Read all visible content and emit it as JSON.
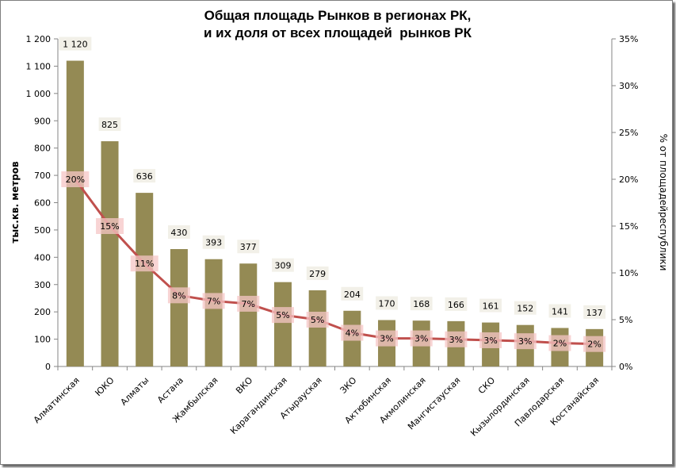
{
  "chart_data": {
    "type": "bar",
    "title_lines": [
      "Общая площадь Рынков в регионах РК,",
      "и их доля от всех площадей  рынков РК"
    ],
    "categories": [
      "Алматинская",
      "ЮКО",
      "Алматы",
      "Астана",
      "Жамбылская",
      "ВКО",
      "Карагандинская",
      "Атырауская",
      "ЗКО",
      "Актюбинская",
      "Акмолинская",
      "Мангистауская",
      "СКО",
      "Кызылординская",
      "Павлодарская",
      "Костанайская"
    ],
    "series": [
      {
        "type": "bar",
        "axis": "left",
        "values": [
          1120,
          825,
          636,
          430,
          393,
          377,
          309,
          279,
          204,
          170,
          168,
          166,
          161,
          152,
          141,
          137
        ],
        "labels": [
          "1 120",
          "825",
          "636",
          "430",
          "393",
          "377",
          "309",
          "279",
          "204",
          "170",
          "168",
          "166",
          "161",
          "152",
          "141",
          "137"
        ],
        "color": "#948a54"
      },
      {
        "type": "line",
        "axis": "right",
        "values": [
          0.2,
          0.15,
          0.11,
          0.076,
          0.07,
          0.067,
          0.055,
          0.05,
          0.036,
          0.03,
          0.03,
          0.029,
          0.028,
          0.027,
          0.025,
          0.024
        ],
        "labels": [
          "20%",
          "15%",
          "11%",
          "8%",
          "7%",
          "7%",
          "5%",
          "5%",
          "4%",
          "3%",
          "3%",
          "3%",
          "3%",
          "3%",
          "2%",
          "2%"
        ],
        "color": "#c0504d"
      }
    ],
    "ylabel": "тыс.кв. метров",
    "y2label": "% от площадейреспублики",
    "ylim": [
      0,
      1200
    ],
    "y2lim": [
      0,
      0.35
    ],
    "yticks": [
      "0",
      "100",
      "200",
      "300",
      "400",
      "500",
      "600",
      "700",
      "800",
      "900",
      "1 000",
      "1 100",
      "1 200"
    ],
    "y2ticks": [
      "0%",
      "5%",
      "10%",
      "15%",
      "20%",
      "25%",
      "30%",
      "35%"
    ],
    "grid": false,
    "legend": "none"
  }
}
